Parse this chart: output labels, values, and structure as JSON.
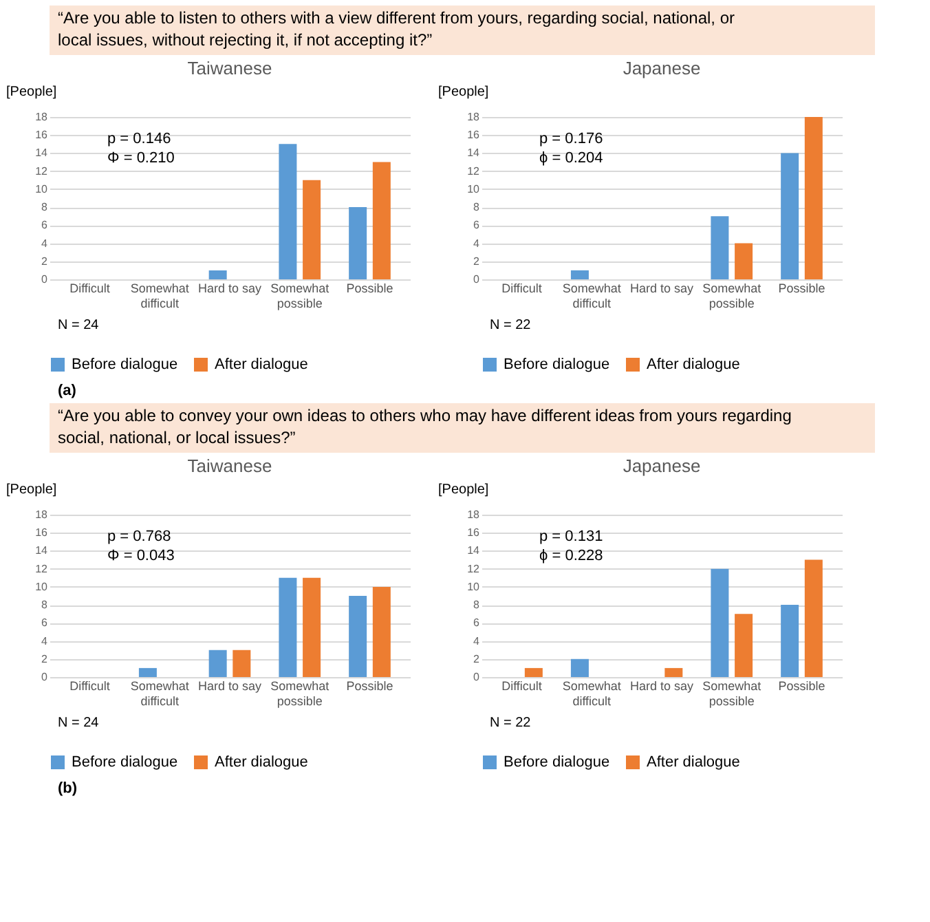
{
  "chart_data": [
    {
      "type": "bar",
      "title": "Taiwanese",
      "ylabel": "[People]",
      "categories": [
        "Difficult",
        "Somewhat difficult",
        "Hard to say",
        "Somewhat possible",
        "Possible"
      ],
      "series": [
        {
          "name": "Before dialogue",
          "color": "#5b9bd5",
          "values": [
            0,
            0,
            1,
            15,
            8
          ]
        },
        {
          "name": "After dialogue",
          "color": "#ed7d31",
          "values": [
            0,
            0,
            0,
            11,
            13
          ]
        }
      ],
      "ylim": [
        0,
        18
      ],
      "yticks": [
        0,
        2,
        4,
        6,
        8,
        10,
        12,
        14,
        16,
        18
      ],
      "grid": "y",
      "legend": "bottom",
      "annotations": [
        "p = 0.146",
        "Φ = 0.210",
        "N = 24",
        "“Are you able to listen to others with a view different from yours, regarding social, national, or local issues, without rejecting it, if not accepting it?”"
      ]
    },
    {
      "type": "bar",
      "title": "Japanese",
      "ylabel": "[People]",
      "categories": [
        "Difficult",
        "Somewhat difficult",
        "Hard to say",
        "Somewhat possible",
        "Possible"
      ],
      "series": [
        {
          "name": "Before dialogue",
          "color": "#5b9bd5",
          "values": [
            0,
            1,
            0,
            7,
            14
          ]
        },
        {
          "name": "After dialogue",
          "color": "#ed7d31",
          "values": [
            0,
            0,
            0,
            4,
            18
          ]
        }
      ],
      "ylim": [
        0,
        18
      ],
      "yticks": [
        0,
        2,
        4,
        6,
        8,
        10,
        12,
        14,
        16,
        18
      ],
      "grid": "y",
      "legend": "bottom",
      "annotations": [
        "p = 0.176",
        "ϕ = 0.204",
        "N = 22",
        "(a)"
      ]
    },
    {
      "type": "bar",
      "title": "Taiwanese",
      "ylabel": "[People]",
      "categories": [
        "Difficult",
        "Somewhat difficult",
        "Hard to say",
        "Somewhat possible",
        "Possible"
      ],
      "series": [
        {
          "name": "Before dialogue",
          "color": "#5b9bd5",
          "values": [
            0,
            1,
            3,
            11,
            9
          ]
        },
        {
          "name": "After dialogue",
          "color": "#ed7d31",
          "values": [
            0,
            0,
            3,
            11,
            10
          ]
        }
      ],
      "ylim": [
        0,
        18
      ],
      "yticks": [
        0,
        2,
        4,
        6,
        8,
        10,
        12,
        14,
        16,
        18
      ],
      "grid": "y",
      "legend": "bottom",
      "annotations": [
        "p = 0.768",
        "Φ = 0.043",
        "N = 24",
        "“Are you able to convey your own ideas to others who may have different ideas from yours regarding social, national, or local issues?”"
      ]
    },
    {
      "type": "bar",
      "title": "Japanese",
      "ylabel": "[People]",
      "categories": [
        "Difficult",
        "Somewhat difficult",
        "Hard to say",
        "Somewhat possible",
        "Possible"
      ],
      "series": [
        {
          "name": "Before dialogue",
          "color": "#5b9bd5",
          "values": [
            0,
            2,
            0,
            12,
            8
          ]
        },
        {
          "name": "After dialogue",
          "color": "#ed7d31",
          "values": [
            1,
            0,
            1,
            7,
            13
          ]
        }
      ],
      "ylim": [
        0,
        18
      ],
      "yticks": [
        0,
        2,
        4,
        6,
        8,
        10,
        12,
        14,
        16,
        18
      ],
      "grid": "y",
      "legend": "bottom",
      "annotations": [
        "p = 0.131",
        "ϕ = 0.228",
        "N = 22",
        "(b)"
      ]
    }
  ]
}
